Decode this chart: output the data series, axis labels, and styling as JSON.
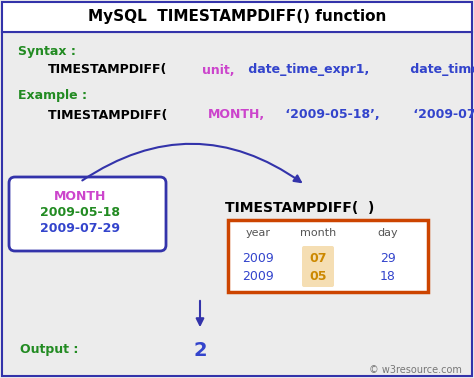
{
  "title": "MySQL  TIMESTAMPDIFF() function",
  "bg_color": "#ececec",
  "border_color": "#3333aa",
  "syntax_label": "Syntax :",
  "syntax_label_color": "#228B22",
  "example_label": "Example :",
  "example_label_color": "#228B22",
  "oval_month_color": "#cc44cc",
  "oval_date1_color": "#228B22",
  "oval_date2_color": "#3344cc",
  "oval_border_color": "#3333aa",
  "oval_month": "MONTH",
  "oval_date1": "2009-05-18",
  "oval_date2": "2009-07-29",
  "func_label": "TIMESTAMPDIFF(  )",
  "table_border_color": "#cc4400",
  "table_header": [
    "year",
    "month",
    "day"
  ],
  "table_row1": [
    "2009",
    "07",
    "29"
  ],
  "table_row2": [
    "2009",
    "05",
    "18"
  ],
  "table_header_color": "#555555",
  "table_data_color": "#3344cc",
  "table_highlight_color": "#cc8800",
  "table_highlight_bg": "#f5deb3",
  "output_label": "Output :",
  "output_label_color": "#228B22",
  "output_value": "2",
  "output_value_color": "#3344cc",
  "watermark": "© w3resource.com",
  "arrow_color": "#3333aa",
  "black": "#000000",
  "magenta": "#cc44cc",
  "blue": "#3344cc"
}
